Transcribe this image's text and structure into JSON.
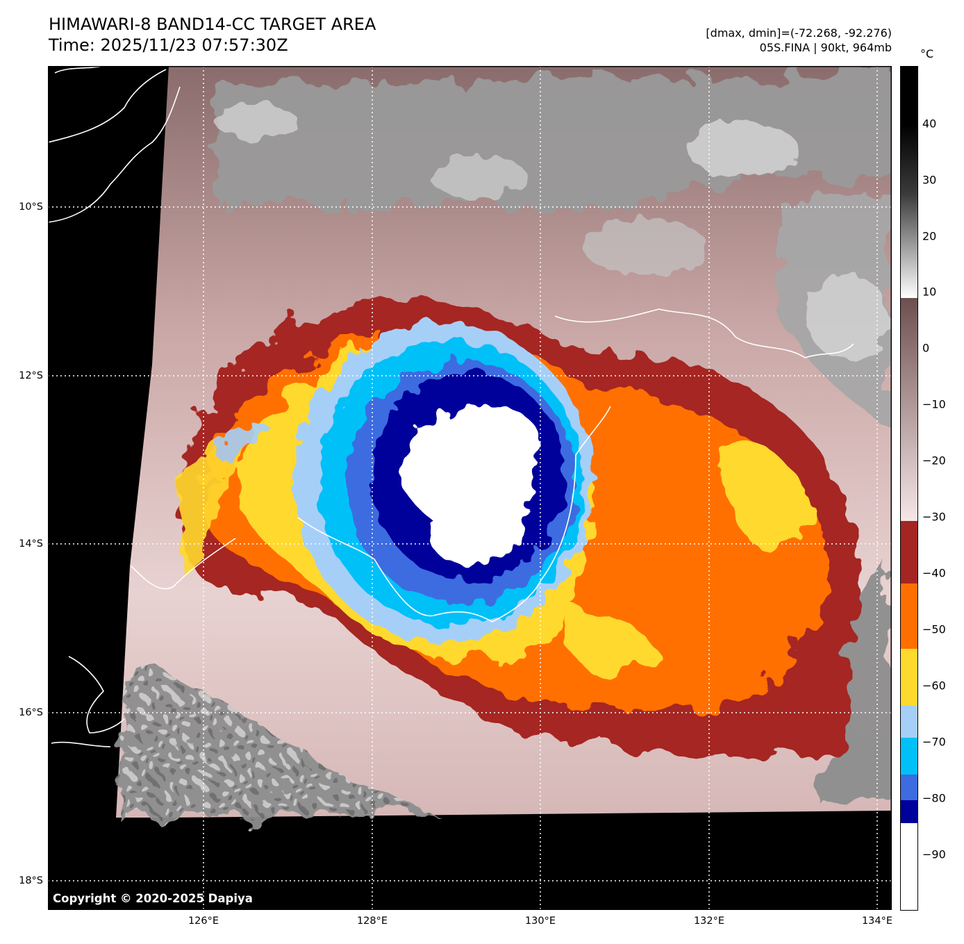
{
  "header": {
    "title": "HIMAWARI-8 BAND14-CC TARGET AREA",
    "time": "Time: 2025/11/23 07:57:30Z",
    "dmax_dmin": "[dmax, dmin]=(-72.268, -92.276)",
    "storm": "05S.FINA | 90kt, 964mb"
  },
  "copyright": "Copyright © 2020-2025 Dapiya",
  "latitude_labels": [
    "10°S",
    "12°S",
    "14°S",
    "16°S",
    "18°S"
  ],
  "longitude_labels": [
    "126°E",
    "128°E",
    "130°E",
    "132°E",
    "134°E"
  ],
  "colorbar": {
    "unit": "°C",
    "ticks": [
      "40",
      "30",
      "20",
      "10",
      "0",
      "−10",
      "−20",
      "−30",
      "−40",
      "−50",
      "−60",
      "−70",
      "−80",
      "−90"
    ],
    "colors": {
      "above_10": "gray",
      "10_to_-30": "#a07a7a",
      "-30_to-40": "#a52523",
      "-40_to-50": "#ff6f00",
      "-50_to-60": "#ffd92e",
      "-60_to-65": "#a6cff8",
      "-65_to-75": "#00c0f8",
      "-75_to-80": "#3c6ce0",
      "-80_to-85": "#00009a",
      "below_-85": "#ffffff"
    }
  }
}
